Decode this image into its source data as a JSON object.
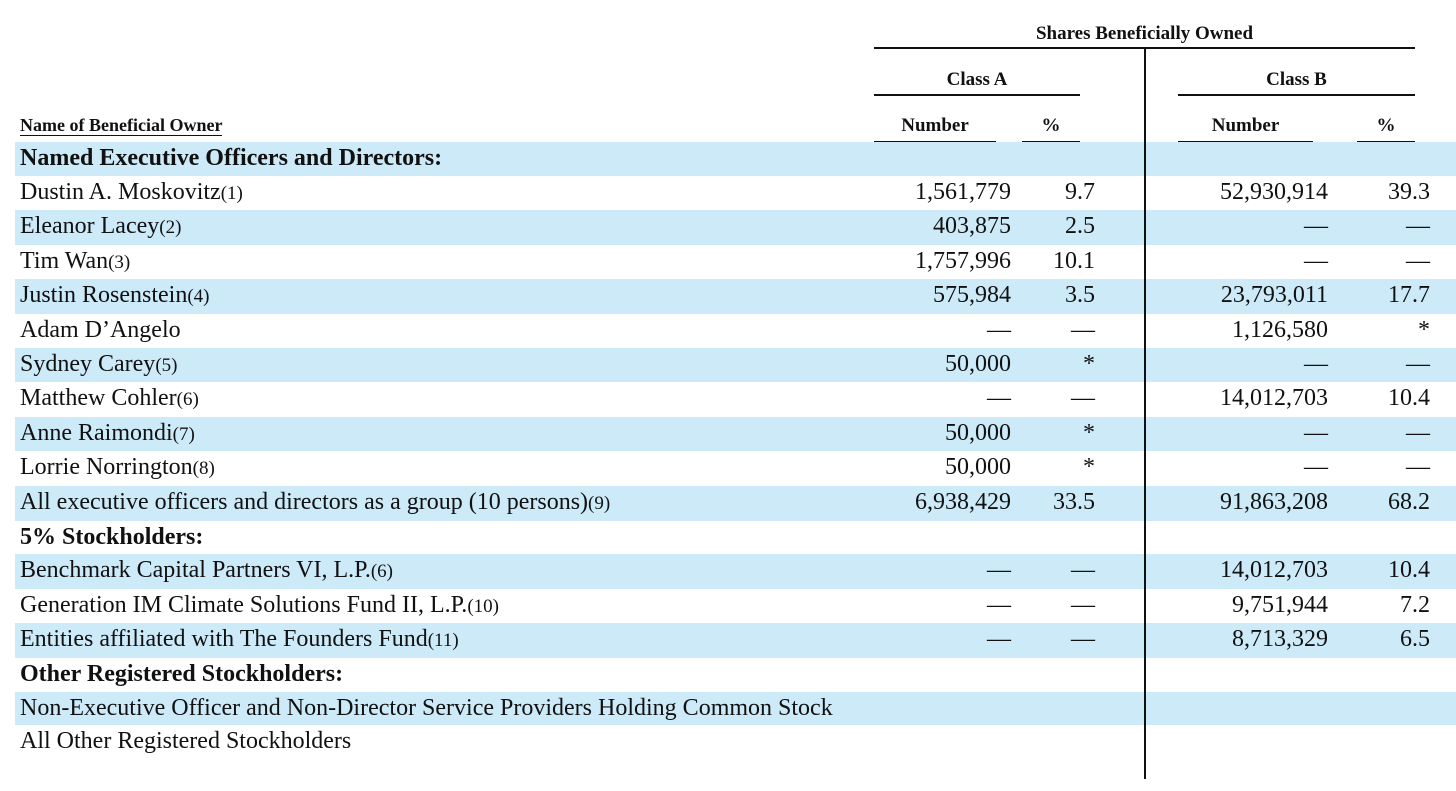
{
  "header": {
    "group": "Shares Beneficially Owned",
    "class_a": "Class A",
    "class_b": "Class B",
    "columns": [
      "Name of Beneficial Owner",
      "Number",
      "%",
      "Number",
      "%"
    ]
  },
  "rows": [
    {
      "name": "Named Executive Officers and Directors:",
      "section": true
    },
    {
      "name": "Dustin A. Moskovitz",
      "note": "(1)",
      "cells": [
        "1,561,779",
        "9.7",
        "52,930,914",
        "39.3"
      ]
    },
    {
      "name": "Eleanor Lacey",
      "note": "(2)",
      "cells": [
        "403,875",
        "2.5",
        "—",
        "—"
      ]
    },
    {
      "name": "Tim Wan",
      "note": "(3)",
      "cells": [
        "1,757,996",
        "10.1",
        "—",
        "—"
      ]
    },
    {
      "name": "Justin Rosenstein",
      "note": "(4)",
      "cells": [
        "575,984",
        "3.5",
        "23,793,011",
        "17.7"
      ]
    },
    {
      "name": "Adam D’Angelo",
      "cells": [
        "—",
        "—",
        "1,126,580",
        "*"
      ]
    },
    {
      "name": "Sydney Carey",
      "note": "(5)",
      "cells": [
        "50,000",
        "*",
        "—",
        "—"
      ]
    },
    {
      "name": "Matthew Cohler",
      "note": "(6)",
      "cells": [
        "—",
        "—",
        "14,012,703",
        "10.4"
      ]
    },
    {
      "name": "Anne Raimondi",
      "note": "(7)",
      "cells": [
        "50,000",
        "*",
        "—",
        "—"
      ]
    },
    {
      "name": "Lorrie Norrington",
      "note": "(8)",
      "cells": [
        "50,000",
        "*",
        "—",
        "—"
      ]
    },
    {
      "name": "All executive officers and directors as a group (10 persons)",
      "note": "(9)",
      "cells": [
        "6,938,429",
        "33.5",
        "91,863,208",
        "68.2"
      ]
    },
    {
      "name": "5% Stockholders:",
      "section": true
    },
    {
      "name": "Benchmark Capital Partners VI, L.P.",
      "note": "(6)",
      "cells": [
        "—",
        "—",
        "14,012,703",
        "10.4"
      ]
    },
    {
      "name": "Generation IM Climate Solutions Fund II, L.P.",
      "note": "(10)",
      "cells": [
        "—",
        "—",
        "9,751,944",
        "7.2"
      ]
    },
    {
      "name": "Entities affiliated with The Founders Fund",
      "note": "(11)",
      "cells": [
        "—",
        "—",
        "8,713,329",
        "6.5"
      ]
    },
    {
      "name": "Other Registered Stockholders:",
      "section": true
    },
    {
      "name": "Non-Executive Officer and Non-Director Service Providers Holding Common Stock"
    },
    {
      "name": "All Other Registered Stockholders"
    }
  ]
}
